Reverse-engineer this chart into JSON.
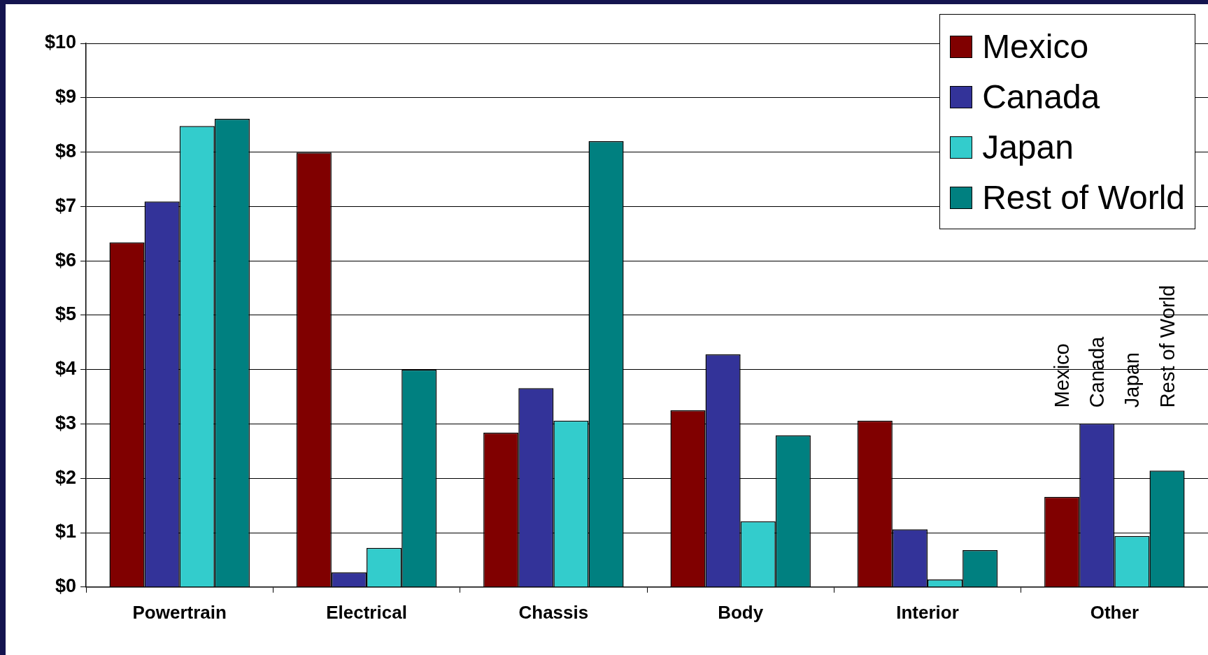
{
  "chart_data": {
    "type": "bar",
    "categories": [
      "Powertrain",
      "Electrical",
      "Chassis",
      "Body",
      "Interior",
      "Other"
    ],
    "series": [
      {
        "name": "Mexico",
        "color": "#800000",
        "values": [
          6.34,
          7.99,
          2.84,
          3.25,
          3.06,
          1.66
        ]
      },
      {
        "name": "Canada",
        "color": "#333399",
        "values": [
          7.09,
          0.27,
          3.66,
          4.28,
          1.06,
          3.01
        ]
      },
      {
        "name": "Japan",
        "color": "#33cccc",
        "values": [
          8.48,
          0.72,
          3.06,
          1.21,
          0.14,
          0.94
        ]
      },
      {
        "name": "Rest of World",
        "color": "#008080",
        "values": [
          8.61,
          4.0,
          8.2,
          2.79,
          0.68,
          2.14
        ]
      }
    ],
    "ylim": [
      0,
      10
    ],
    "yticks": [
      {
        "value": 0,
        "label": "$0"
      },
      {
        "value": 1,
        "label": "$1"
      },
      {
        "value": 2,
        "label": "$2"
      },
      {
        "value": 3,
        "label": "$3"
      },
      {
        "value": 4,
        "label": "$4"
      },
      {
        "value": 5,
        "label": "$5"
      },
      {
        "value": 6,
        "label": "$6"
      },
      {
        "value": 7,
        "label": "$7"
      },
      {
        "value": 8,
        "label": "$8"
      },
      {
        "value": 9,
        "label": "$9"
      },
      {
        "value": 10,
        "label": "$10"
      }
    ],
    "grid": "y",
    "legend": "top right",
    "annotations": [
      "Mexico",
      "Canada",
      "Japan",
      "Rest of World"
    ]
  }
}
